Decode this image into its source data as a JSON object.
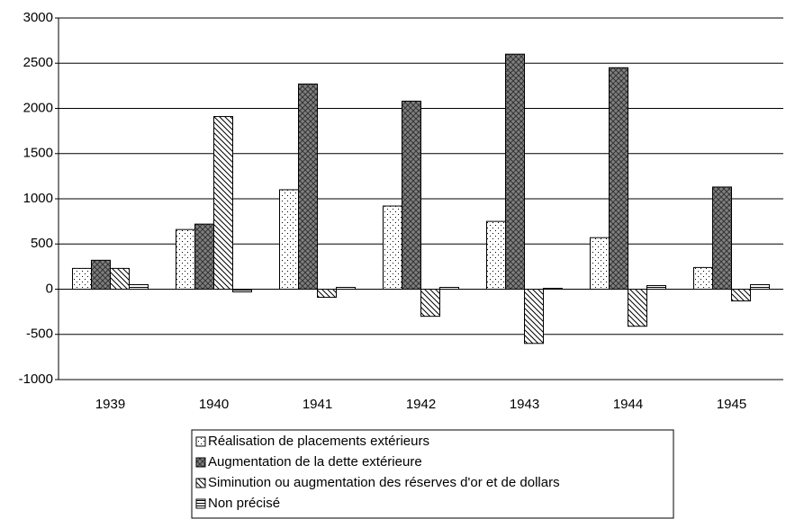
{
  "chart_data": {
    "type": "bar",
    "categories": [
      "1939",
      "1940",
      "1941",
      "1942",
      "1943",
      "1944",
      "1945"
    ],
    "series": [
      {
        "name": "Réalisation de placements extérieurs",
        "color": "#ffffff",
        "pattern": "dots",
        "values": [
          230,
          660,
          1100,
          920,
          750,
          570,
          240
        ]
      },
      {
        "name": "Augmentation de la dette extérieure",
        "color": "#808080",
        "pattern": "crosshatch",
        "values": [
          320,
          720,
          2270,
          2080,
          2600,
          2450,
          1130
        ]
      },
      {
        "name": "Siminution ou augmentation des réserves d'or et de dollars",
        "color": "#ffffff",
        "pattern": "diagonal",
        "values": [
          230,
          1910,
          -90,
          -300,
          -600,
          -410,
          -130
        ]
      },
      {
        "name": "Non précisé",
        "color": "#ffffff",
        "pattern": "horizontal",
        "values": [
          50,
          -30,
          20,
          20,
          10,
          40,
          50
        ]
      }
    ],
    "ylim": [
      -1000,
      3000
    ],
    "yticks": [
      -1000,
      -500,
      0,
      500,
      1000,
      1500,
      2000,
      2500,
      3000
    ],
    "grid": true,
    "legend": "bottom"
  }
}
